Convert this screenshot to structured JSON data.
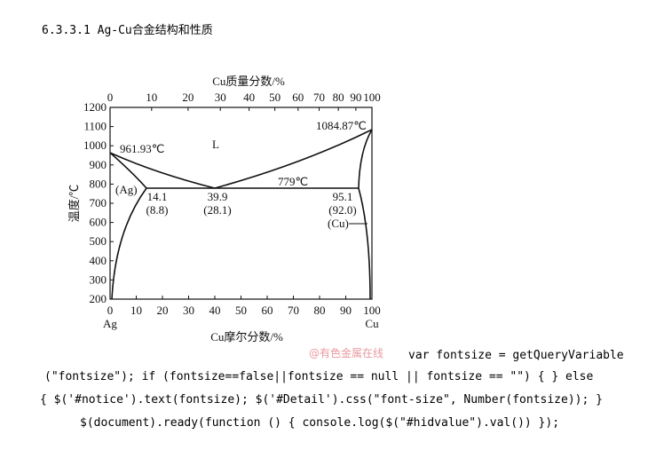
{
  "title": "6.3.3.1 Ag-Cu合金结构和性质",
  "figure": {
    "top_axis_label": "Cu质量分数/%",
    "top_ticks": [
      0,
      10,
      20,
      30,
      40,
      50,
      60,
      70,
      80,
      90,
      100
    ],
    "y_axis_label": "温度/℃",
    "y_ticks": [
      200,
      300,
      400,
      500,
      600,
      700,
      800,
      900,
      1000,
      1100,
      1200
    ],
    "bottom_ticks": [
      0,
      10,
      20,
      30,
      40,
      50,
      60,
      70,
      80,
      90,
      100
    ],
    "bottom_axis_label": "Cu摩尔分数/%",
    "left_element": "Ag",
    "right_element": "Cu",
    "annotations": [
      "961.93℃",
      "L",
      "1084.87℃",
      "779℃",
      "(Ag)",
      "14.1",
      "(8.8)",
      "39.9",
      "(28.1)",
      "95.1",
      "(92.0)",
      "(Cu)"
    ]
  },
  "watermark": "@有色金属在线",
  "code_lines": [
    "var fontsize = getQueryVariable",
    "(\"fontsize\"); if (fontsize==false||fontsize == null || fontsize == \"\") { } else",
    "{ $('#notice').text(fontsize); $('#Detail').css(\"font-size\", Number(fontsize)); }",
    "$(document).ready(function () { console.log($(\"#hidvalue\").val()) });"
  ]
}
